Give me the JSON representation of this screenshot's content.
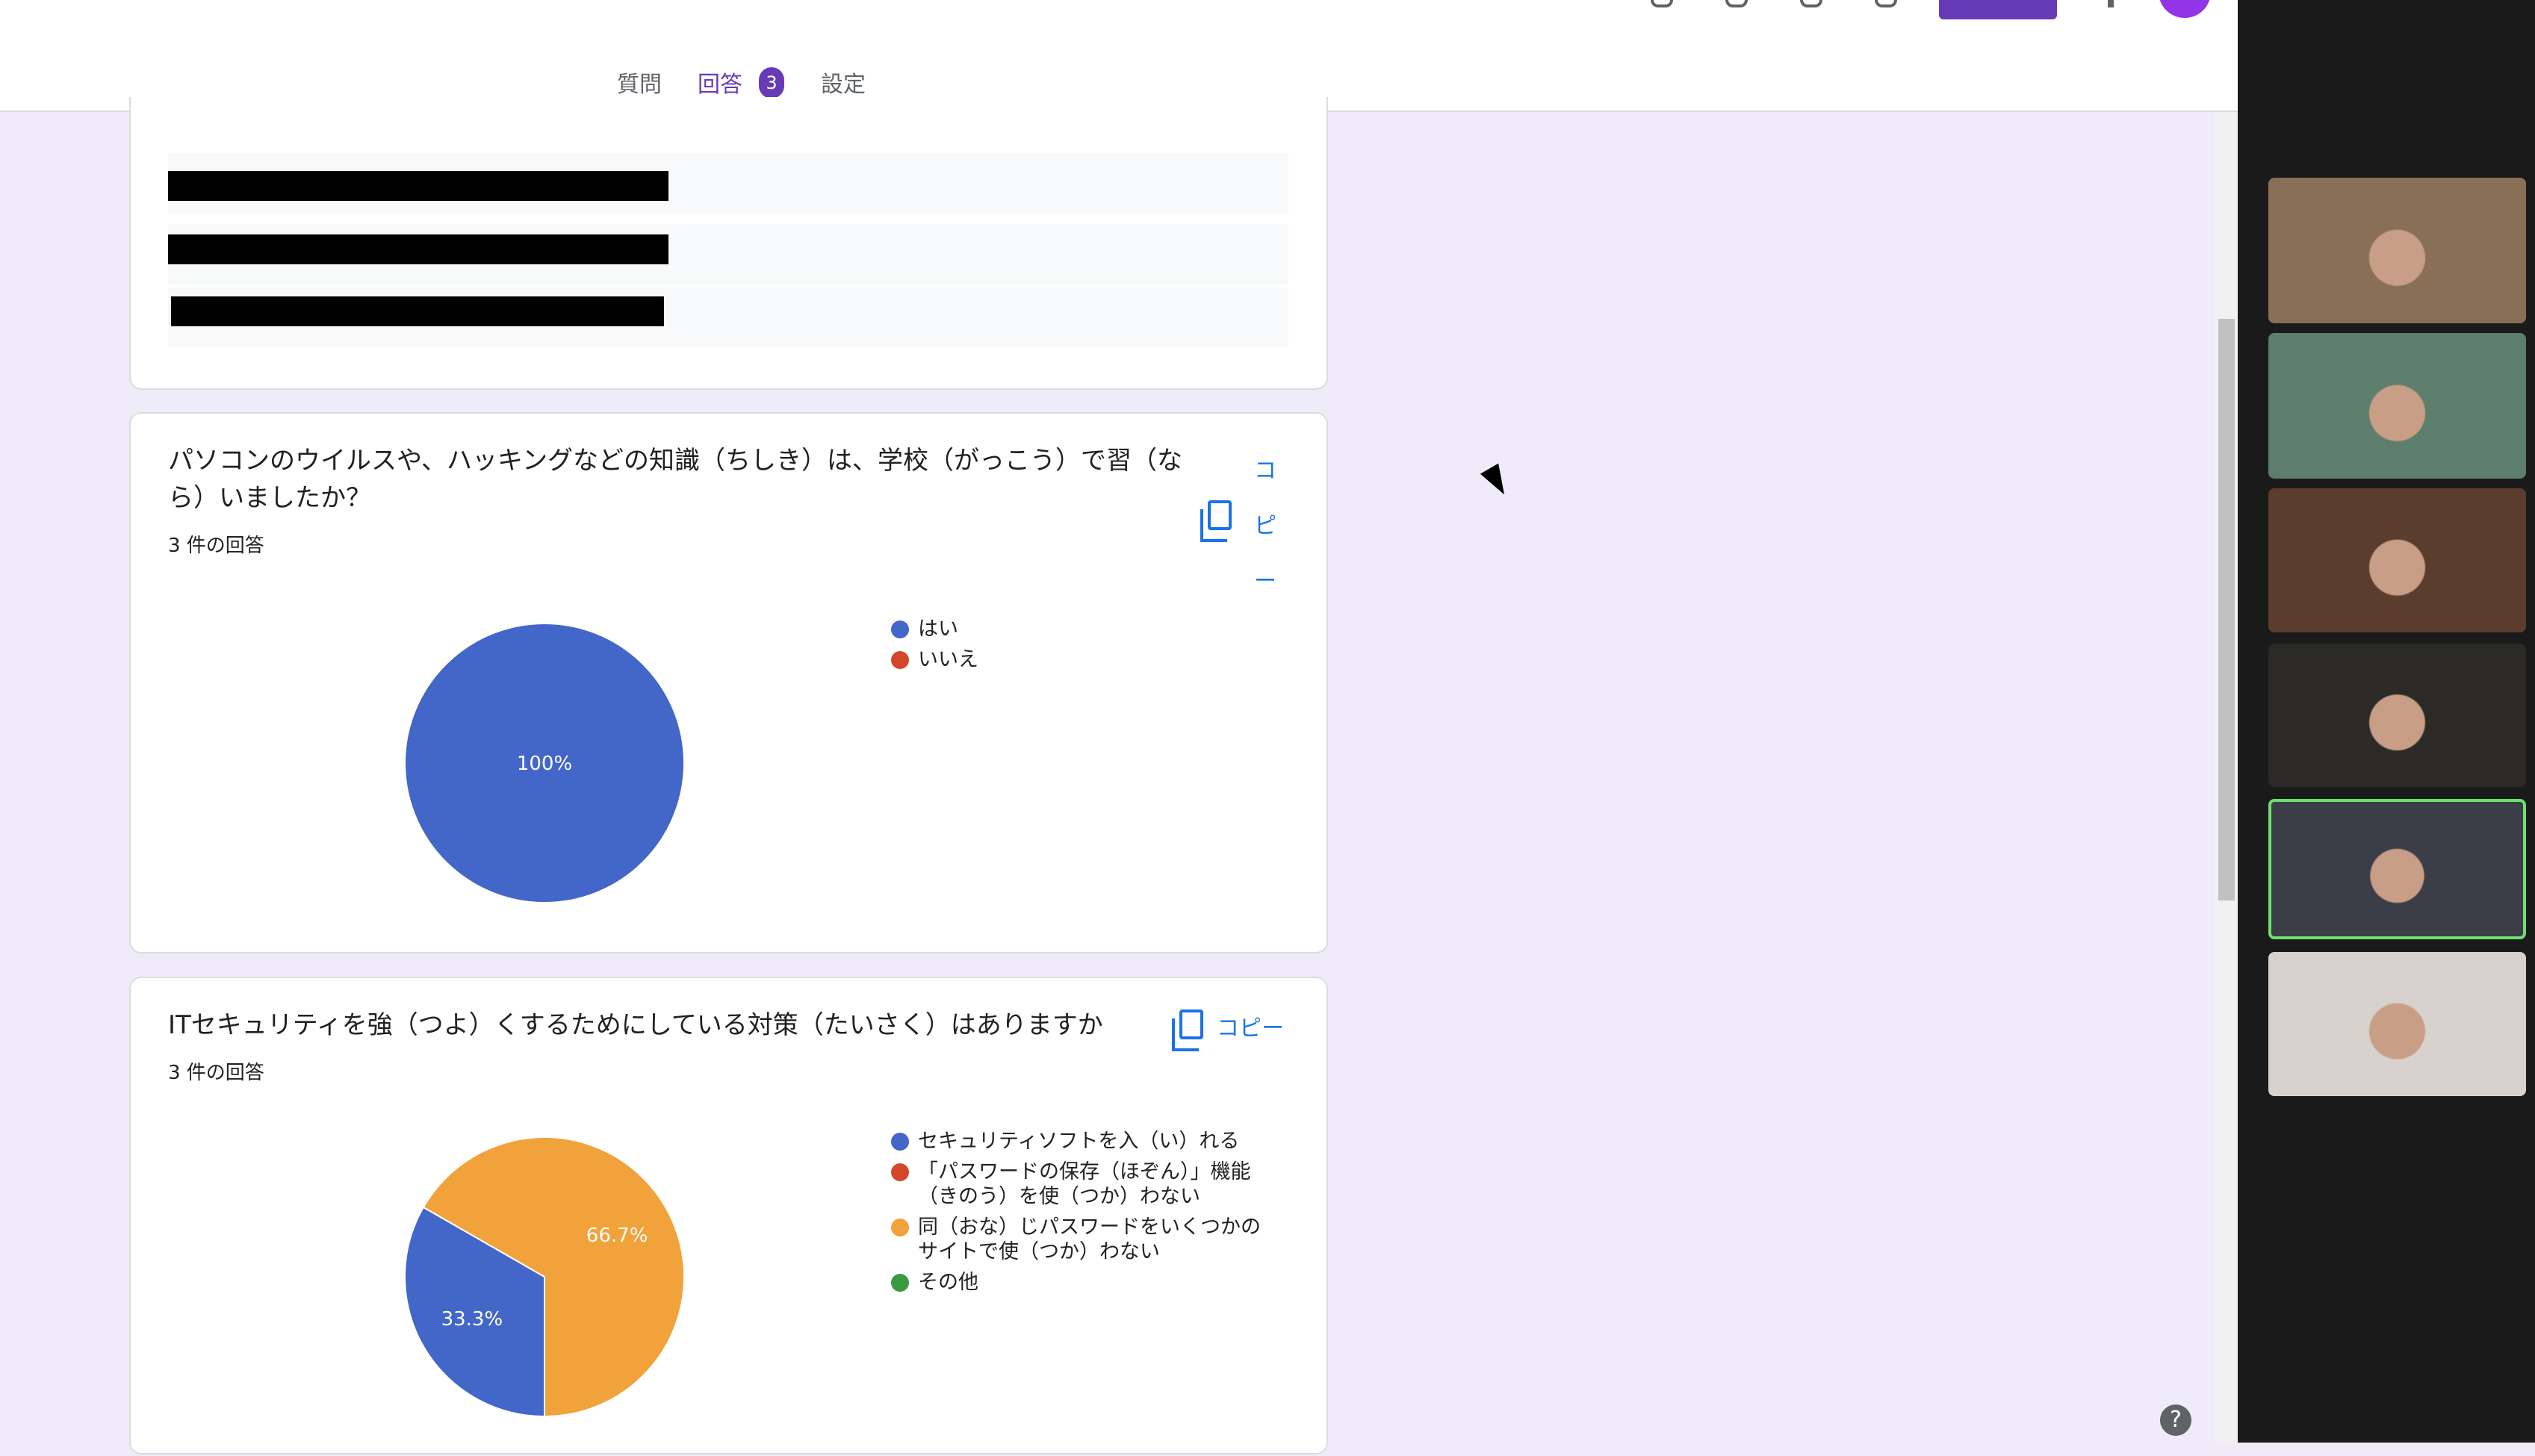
{
  "tabs": [
    {
      "label": "質問"
    },
    {
      "label": "回答",
      "badge": "3"
    },
    {
      "label": "設定"
    }
  ],
  "questions": [
    {
      "title": "パソコンのウイルスや、ハッキングなどの知識（ちしき）は、学校（がっこう）で習（なら）いましたか？",
      "count": "3 件の回答",
      "copy_label": "コピー",
      "chart_data": {
        "type": "pie",
        "categories": [
          "はい",
          "いいえ"
        ],
        "values": [
          100,
          0
        ],
        "labels": [
          "100%",
          ""
        ],
        "colors": [
          "#4366c9",
          "#d4472b"
        ]
      }
    },
    {
      "title": "ITセキュリティを強（つよ）くするためにしている対策（たいさく）はありますか",
      "count": "3 件の回答",
      "copy_label": "コピー",
      "chart_data": {
        "type": "pie",
        "categories": [
          "セキュリティソフトを入（い）れる",
          "「パスワードの保存（ほぞん）」機能（きのう）を使（つか）わない",
          "同（おな）じパスワードをいくつかのサイトで使（つか）わない",
          "その他"
        ],
        "values": [
          33.3,
          0,
          66.7,
          0
        ],
        "labels": [
          "33.3%",
          "",
          "66.7%",
          ""
        ],
        "colors": [
          "#4366c9",
          "#d4472b",
          "#f2a23a",
          "#3a9a3f"
        ]
      }
    }
  ],
  "participants": [
    {
      "tile": "participant-1"
    },
    {
      "tile": "participant-2"
    },
    {
      "tile": "participant-3"
    },
    {
      "tile": "participant-4"
    },
    {
      "tile": "participant-5",
      "speaking": true
    },
    {
      "tile": "participant-6"
    }
  ],
  "help": "?"
}
